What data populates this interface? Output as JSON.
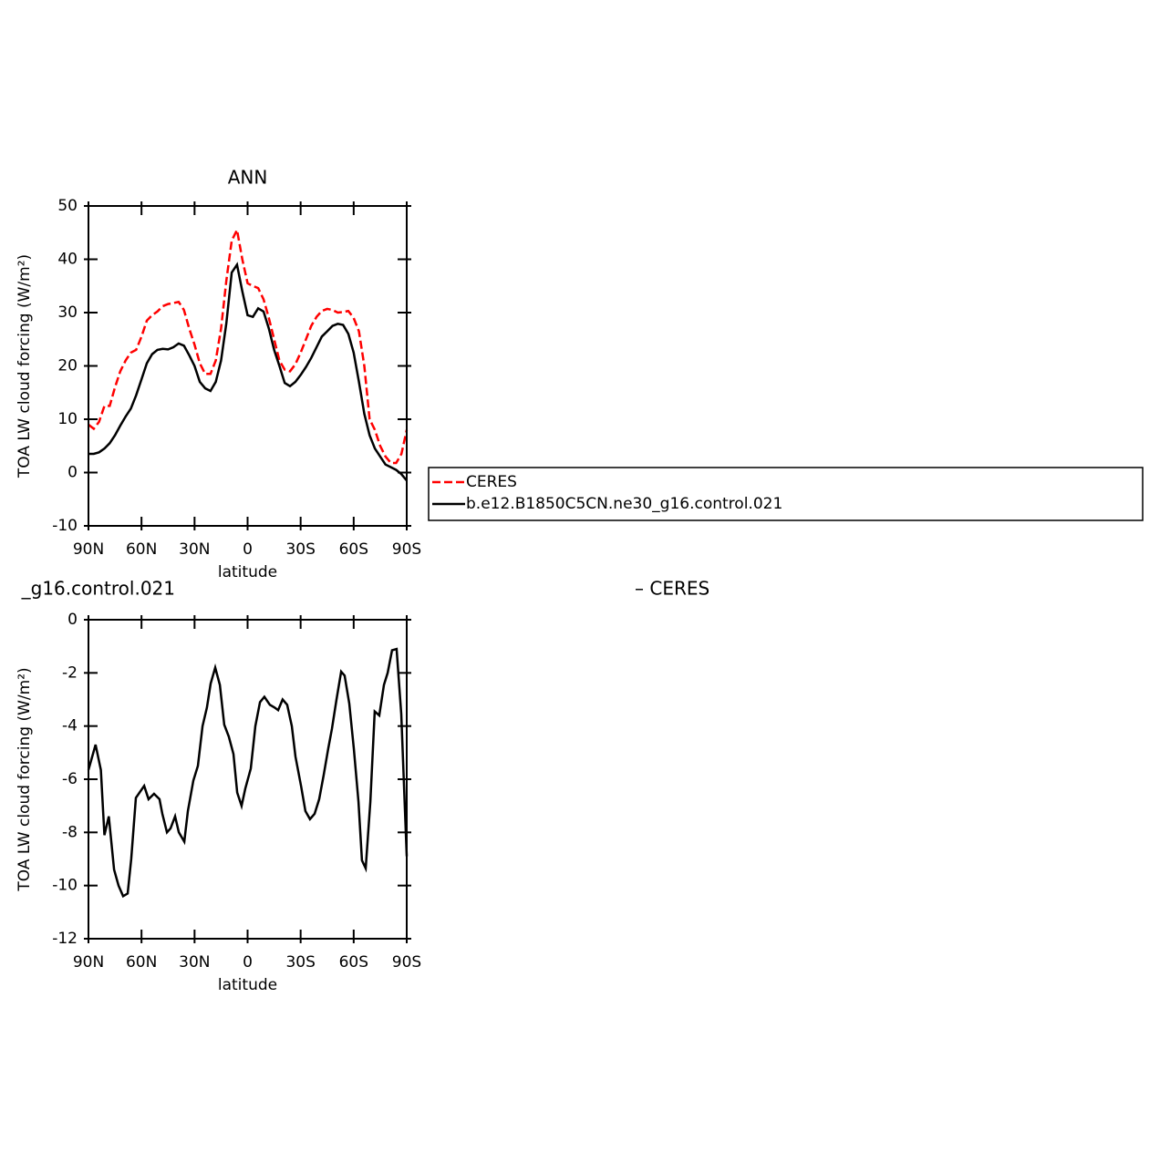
{
  "chart_data": [
    {
      "type": "line",
      "title": "ANN",
      "xlabel": "latitude",
      "ylabel": "TOA LW cloud forcing (W/m²)",
      "xlim": [
        90,
        -90
      ],
      "ylim": [
        -10,
        50
      ],
      "xticks": [
        {
          "value": 90,
          "label": "90N"
        },
        {
          "value": 60,
          "label": "60N"
        },
        {
          "value": 30,
          "label": "30N"
        },
        0,
        {
          "value": -30,
          "label": "30S"
        },
        {
          "value": -60,
          "label": "60S"
        },
        {
          "value": -90,
          "label": "90S"
        }
      ],
      "yticks": [
        -10,
        0,
        10,
        20,
        30,
        40,
        50
      ],
      "legend": "right",
      "x": [
        90,
        87,
        84,
        81,
        78,
        75,
        72,
        69,
        66,
        63,
        60,
        57,
        54,
        51,
        48,
        45,
        42,
        39,
        36,
        33,
        30,
        27,
        24,
        21,
        18,
        15,
        12,
        9,
        6,
        3,
        0,
        -3,
        -6,
        -9,
        -12,
        -15,
        -18,
        -21,
        -24,
        -27,
        -30,
        -33,
        -36,
        -39,
        -42,
        -45,
        -48,
        -51,
        -54,
        -57,
        -60,
        -63,
        -66,
        -69,
        -72,
        -75,
        -78,
        -81,
        -84,
        -87,
        -90
      ],
      "series": [
        {
          "name": "CERES",
          "color": "#ff0000",
          "dashed": true,
          "values": [
            9,
            8.2,
            9.5,
            12.5,
            12.5,
            16,
            19,
            21,
            22.5,
            23,
            25.5,
            28.5,
            29.5,
            30.2,
            31.2,
            31.6,
            31.8,
            32,
            30.5,
            27,
            24,
            20.5,
            18.5,
            18.5,
            21,
            27,
            36,
            43.5,
            45.5,
            40,
            35.5,
            35,
            34.6,
            32.5,
            29,
            25,
            21,
            19.3,
            19,
            20.3,
            22.5,
            25,
            27.5,
            29.2,
            30.3,
            30.7,
            30.5,
            30,
            30.1,
            30.3,
            29,
            26.5,
            20,
            10,
            8,
            5,
            3,
            1.8,
            1.8,
            3.5,
            8
          ]
        },
        {
          "name": "b.e12.B1850C5CN.ne30_g16.control.021",
          "color": "#000000",
          "dashed": false,
          "values": [
            3.5,
            3.5,
            3.8,
            4.5,
            5.5,
            7,
            8.8,
            10.5,
            12,
            14.5,
            17.5,
            20.5,
            22.2,
            23,
            23.2,
            23.1,
            23.5,
            24.2,
            23.8,
            22,
            20,
            17,
            15.8,
            15.3,
            17,
            21,
            28,
            37.5,
            39,
            34,
            29.5,
            29.2,
            30.8,
            30.2,
            27,
            23,
            20,
            16.8,
            16.2,
            17,
            18.3,
            19.8,
            21.5,
            23.5,
            25.5,
            26.5,
            27.5,
            27.9,
            27.7,
            26,
            22.5,
            17,
            11,
            7,
            4.5,
            3,
            1.5,
            1,
            0.5,
            -0.3,
            -1.5
          ]
        }
      ]
    },
    {
      "type": "line",
      "left_title": "_g16.control.021",
      "right_title": "– CERES",
      "xlabel": "latitude",
      "ylabel": "TOA LW cloud forcing (W/m²)",
      "xlim": [
        90,
        -90
      ],
      "ylim": [
        -12,
        0
      ],
      "xticks": [
        {
          "value": 90,
          "label": "90N"
        },
        {
          "value": 60,
          "label": "60N"
        },
        {
          "value": 30,
          "label": "30N"
        },
        0,
        {
          "value": -30,
          "label": "30S"
        },
        {
          "value": -60,
          "label": "60S"
        },
        {
          "value": -90,
          "label": "90S"
        }
      ],
      "yticks": [
        -12,
        -10,
        -8,
        -6,
        -4,
        -2,
        0
      ],
      "x": [
        90,
        86,
        83,
        81,
        78.5,
        75.5,
        73,
        70.4,
        67.8,
        65.8,
        63.2,
        58.5,
        56,
        52.9,
        49.8,
        48.2,
        45.6,
        43.6,
        41,
        38.9,
        35.8,
        33.8,
        30.7,
        28.1,
        25.5,
        23,
        20.9,
        18.3,
        15.7,
        13.2,
        10.6,
        8,
        5.9,
        3.4,
        1.3,
        -1.8,
        -4.4,
        -7,
        -9.5,
        -12.6,
        -15.2,
        -17.3,
        -19.8,
        -22.4,
        -25,
        -27.1,
        -30.2,
        -32.7,
        -35.3,
        -37.9,
        -40.5,
        -43,
        -45.6,
        -47.7,
        -50.3,
        -52.9,
        -54.9,
        -57.5,
        -60.1,
        -62.7,
        -64.7,
        -66.8,
        -69.4,
        -71.9,
        -74.5,
        -77.1,
        -79.2,
        -81.7,
        -84.3,
        -86.9,
        -90
      ],
      "series": [
        {
          "name": null,
          "color": "#000000",
          "dashed": false,
          "values": [
            -5.65,
            -4.7,
            -5.65,
            -8.1,
            -7.4,
            -9.4,
            -10,
            -10.4,
            -10.3,
            -9,
            -6.7,
            -6.25,
            -6.75,
            -6.55,
            -6.75,
            -7.3,
            -8,
            -7.85,
            -7.4,
            -8,
            -8.35,
            -7.2,
            -6.05,
            -5.5,
            -4,
            -3.3,
            -2.4,
            -1.8,
            -2.45,
            -3.95,
            -4.4,
            -5.05,
            -6.5,
            -7,
            -6.35,
            -5.6,
            -4,
            -3.1,
            -2.9,
            -3.2,
            -3.3,
            -3.4,
            -3,
            -3.2,
            -4,
            -5.15,
            -6.25,
            -7.2,
            -7.5,
            -7.3,
            -6.75,
            -5.85,
            -4.85,
            -4.1,
            -3,
            -1.95,
            -2.1,
            -3.15,
            -4.85,
            -6.85,
            -9.05,
            -9.35,
            -6.85,
            -3.45,
            -3.6,
            -2.45,
            -2,
            -1.15,
            -1.1,
            -3.55,
            -8.9
          ]
        }
      ]
    }
  ]
}
